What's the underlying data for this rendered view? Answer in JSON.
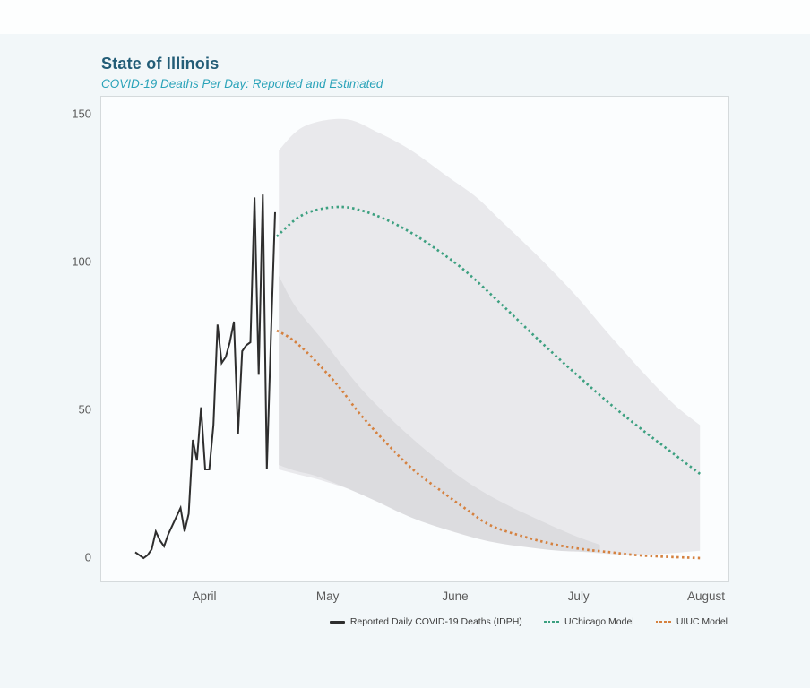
{
  "header": {
    "title": "State of Illinois",
    "subtitle": "COVID-19 Deaths Per Day: Reported and Estimated"
  },
  "colors": {
    "title": "#235d77",
    "subtitle": "#2aa3b9",
    "reported_line": "#2e2e2e",
    "uchicago_model": "#3ca080",
    "uiuc_model": "#d5813f",
    "band_light": "#e9e9ec",
    "band_dark": "#dcdcdf",
    "axis_text": "#5b5b5b",
    "panel_border": "#d5dadc",
    "panel_bg": "#fbfdfe",
    "page_bg": "#f2f7f9"
  },
  "chart_data": {
    "type": "line",
    "title": "State of Illinois",
    "subtitle": "COVID-19 Deaths Per Day: Reported and Estimated",
    "grid": false,
    "legend_position": "bottom-right",
    "x_axis": {
      "unit": "days relative to April 1",
      "tick_labels": [
        "April",
        "May",
        "June",
        "July",
        "August"
      ],
      "tick_days": [
        0,
        30,
        61,
        91,
        122
      ],
      "range_days": [
        -18,
        127
      ]
    },
    "y_axis": {
      "tick_labels": [
        "150",
        "100",
        "50",
        "0"
      ],
      "ticks": [
        150,
        100,
        50,
        0
      ],
      "range": [
        -2,
        162
      ]
    },
    "series": [
      {
        "name": "Reported Daily COVID-19 Deaths (IDPH)",
        "style": "solid",
        "color": "#2e2e2e",
        "start_day": -17,
        "step_days": 1,
        "daily_values": [
          2,
          1,
          0,
          1,
          3,
          9,
          6,
          4,
          8,
          11,
          14,
          17,
          9,
          15,
          40,
          33,
          51,
          30,
          30,
          45,
          79,
          66,
          68,
          73,
          80,
          42,
          70,
          72,
          73,
          122,
          62,
          123,
          30,
          75,
          117
        ]
      },
      {
        "name": "UChicago Model",
        "style": "dotted",
        "color": "#3ca080",
        "points": [
          [
            17.4,
            108.8
          ],
          [
            22.2,
            114.8
          ],
          [
            26.6,
            117.6
          ],
          [
            32.5,
            118.8
          ],
          [
            37.5,
            117.8
          ],
          [
            44,
            114.5
          ],
          [
            50.5,
            109.7
          ],
          [
            57.1,
            103.6
          ],
          [
            63.6,
            96.7
          ],
          [
            72.3,
            85.5
          ],
          [
            81,
            73.9
          ],
          [
            89.8,
            62.7
          ],
          [
            98.5,
            52.1
          ],
          [
            107.2,
            42.4
          ],
          [
            113.7,
            35.5
          ],
          [
            120.3,
            28.5
          ]
        ]
      },
      {
        "name": "UIUC Model",
        "style": "dotted",
        "color": "#d5813f",
        "points": [
          [
            17.4,
            77
          ],
          [
            21.1,
            74
          ],
          [
            25.9,
            68
          ],
          [
            32.5,
            58
          ],
          [
            37.5,
            49
          ],
          [
            44,
            39
          ],
          [
            50.5,
            30
          ],
          [
            57.1,
            23
          ],
          [
            63,
            17
          ],
          [
            69.5,
            11
          ],
          [
            78.2,
            7
          ],
          [
            85.4,
            4.5
          ],
          [
            91.9,
            3
          ],
          [
            98.5,
            2
          ],
          [
            105,
            1
          ],
          [
            111.5,
            0.5
          ],
          [
            120.3,
            0
          ]
        ]
      }
    ],
    "bands": [
      {
        "name": "uchicago-confidence-band",
        "color": "#e9e9ec",
        "top": [
          [
            17.9,
            138
          ],
          [
            24,
            146
          ],
          [
            34,
            148.5
          ],
          [
            42,
            144
          ],
          [
            50,
            138
          ],
          [
            59,
            129
          ],
          [
            66,
            122
          ],
          [
            72,
            114
          ],
          [
            81,
            102
          ],
          [
            90,
            89
          ],
          [
            98,
            76
          ],
          [
            107,
            62
          ],
          [
            114,
            52
          ],
          [
            120.3,
            45
          ]
        ],
        "bottom": [
          [
            17.9,
            30
          ],
          [
            22,
            28.5
          ],
          [
            29,
            26
          ],
          [
            37.5,
            22
          ],
          [
            48,
            15
          ],
          [
            59,
            9.5
          ],
          [
            72,
            5.5
          ],
          [
            85,
            3
          ],
          [
            103,
            1
          ],
          [
            111.5,
            1.5
          ],
          [
            120.3,
            2.5
          ]
        ]
      },
      {
        "name": "uiuc-confidence-band-overlap",
        "color": "#dcdcdf",
        "top": [
          [
            17.9,
            95.5
          ],
          [
            22,
            85
          ],
          [
            29,
            73
          ],
          [
            37.5,
            58
          ],
          [
            46,
            46
          ],
          [
            55,
            35
          ],
          [
            63.5,
            26
          ],
          [
            72,
            19
          ],
          [
            81,
            13
          ],
          [
            90,
            7.5
          ],
          [
            96,
            4.5
          ]
        ],
        "bottom": [
          [
            17.9,
            31.5
          ],
          [
            22,
            29.5
          ],
          [
            26.5,
            28
          ],
          [
            33,
            24.5
          ],
          [
            42,
            19
          ],
          [
            50.5,
            13.5
          ],
          [
            59,
            9.5
          ],
          [
            68,
            6
          ],
          [
            76.5,
            4
          ],
          [
            86,
            2.5
          ],
          [
            96,
            2
          ]
        ]
      }
    ]
  },
  "legend": {
    "items": [
      {
        "label": "Reported Daily COVID-19 Deaths (IDPH)",
        "style": "solid",
        "color": "#2e2e2e"
      },
      {
        "label": "UChicago Model",
        "style": "dotted",
        "color": "#3ca080"
      },
      {
        "label": "UIUC Model",
        "style": "dotted",
        "color": "#d5813f"
      }
    ]
  }
}
